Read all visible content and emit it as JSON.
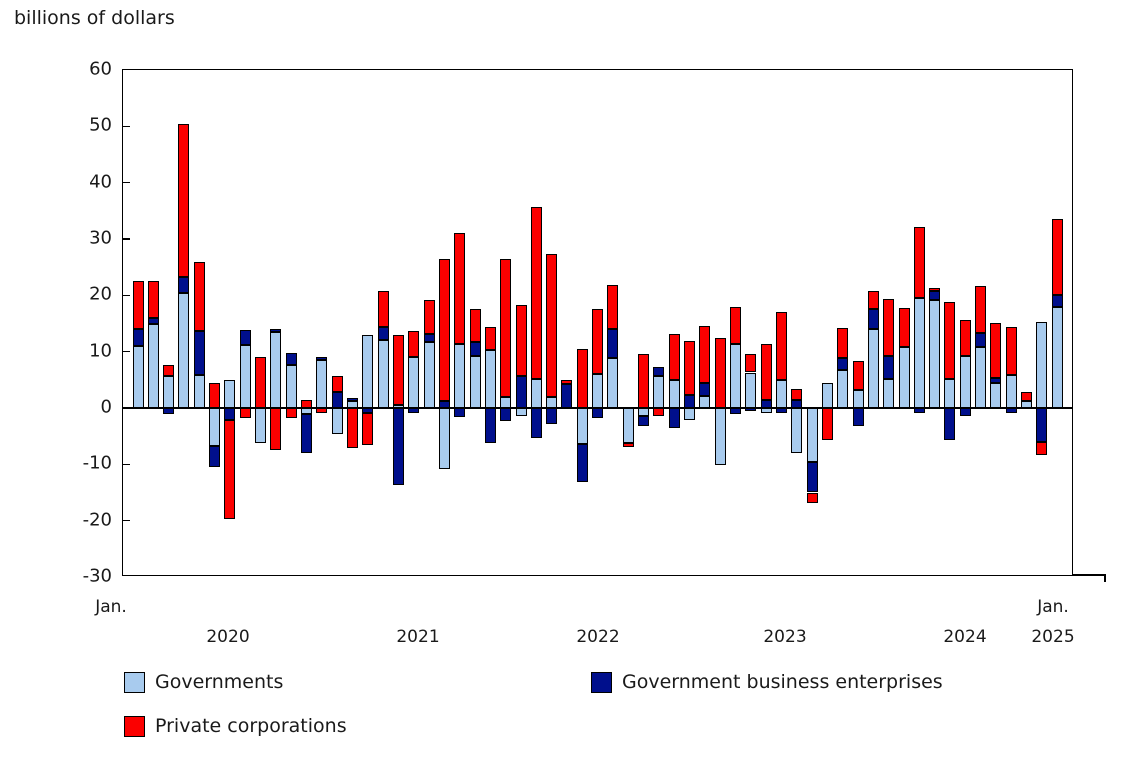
{
  "title": "billions of dollars",
  "chart_data": {
    "type": "bar",
    "stacked": true,
    "unit": "billions of dollars",
    "x_range": "Jan. 2020 to Jan. 2025, monthly",
    "grid": false,
    "legend_position": "bottom",
    "ylim": [
      -30,
      60
    ],
    "y_ticks": [
      60,
      50,
      40,
      30,
      20,
      10,
      0,
      -10,
      -20,
      -30
    ],
    "x_tick_labels": {
      "jan_label_left": "Jan.",
      "jan_label_right": "Jan.",
      "year_row": [
        "2020",
        "2021",
        "2022",
        "2023",
        "2024",
        "2025"
      ]
    },
    "categories": [
      "2020-01",
      "2020-02",
      "2020-03",
      "2020-04",
      "2020-05",
      "2020-06",
      "2020-07",
      "2020-08",
      "2020-09",
      "2020-10",
      "2020-11",
      "2020-12",
      "2021-01",
      "2021-02",
      "2021-03",
      "2021-04",
      "2021-05",
      "2021-06",
      "2021-07",
      "2021-08",
      "2021-09",
      "2021-10",
      "2021-11",
      "2021-12",
      "2022-01",
      "2022-02",
      "2022-03",
      "2022-04",
      "2022-05",
      "2022-06",
      "2022-07",
      "2022-08",
      "2022-09",
      "2022-10",
      "2022-11",
      "2022-12",
      "2023-01",
      "2023-02",
      "2023-03",
      "2023-04",
      "2023-05",
      "2023-06",
      "2023-07",
      "2023-08",
      "2023-09",
      "2023-10",
      "2023-11",
      "2023-12",
      "2024-01",
      "2024-02",
      "2024-03",
      "2024-04",
      "2024-05",
      "2024-06",
      "2024-07",
      "2024-08",
      "2024-09",
      "2024-10",
      "2024-11",
      "2024-12",
      "2025-01"
    ],
    "series": [
      {
        "name": "Governments",
        "color": "#a8cbee",
        "values": [
          11,
          14.9,
          5.6,
          20.5,
          5.9,
          -6.7,
          4.9,
          11.1,
          -6.2,
          13.5,
          7.6,
          -1.1,
          8.5,
          -4.6,
          1.3,
          12.9,
          12.1,
          0.5,
          9,
          11.7,
          -10.9,
          11.4,
          9.3,
          10.3,
          2,
          -1.5,
          5.2,
          1.9,
          0,
          -6.4,
          6.1,
          8.9,
          -6.3,
          -1.5,
          5.7,
          4.9,
          -2.2,
          2.2,
          -10.2,
          11.4,
          6.3,
          -0.9,
          4.9,
          -8,
          -9.5,
          4.5,
          6.7,
          3.2,
          14.1,
          5.2,
          10.8,
          19.6,
          19.2,
          5.2,
          9.2,
          10.8,
          4.4,
          5.8,
          1.3,
          15.2,
          17.9
        ]
      },
      {
        "name": "Government business enterprises",
        "color": "#000f8c",
        "values": [
          3,
          1.1,
          -1,
          2.8,
          7.7,
          -3.7,
          -2.2,
          2.7,
          0,
          0.5,
          2.1,
          -6.9,
          0.6,
          2.8,
          0.4,
          -0.9,
          2.2,
          -13.6,
          -0.8,
          1.5,
          1.3,
          -1.6,
          2.4,
          -6.3,
          -2.3,
          5.6,
          -5.4,
          -2.9,
          4.3,
          -6.7,
          -1.7,
          5.1,
          0,
          -1.7,
          1.6,
          -3.5,
          2.3,
          2.3,
          0,
          -1,
          -0.5,
          1.4,
          -0.9,
          1.4,
          -5.5,
          0,
          2.1,
          -3.2,
          3.5,
          4.1,
          0,
          -0.8,
          1.5,
          -5.6,
          -1.4,
          2.6,
          0.9,
          -0.8,
          0,
          -6.1,
          2.1
        ]
      },
      {
        "name": "Private corporations",
        "color": "#fb0000",
        "values": [
          8.6,
          6.5,
          2.1,
          27.2,
          12.4,
          4.4,
          -17.5,
          -1.8,
          9.1,
          -7.4,
          -1.8,
          1.4,
          -0.8,
          2.9,
          -7.1,
          -5.6,
          6.4,
          12.4,
          4.7,
          5.9,
          25.2,
          19.6,
          5.9,
          4,
          24.5,
          12.6,
          30.5,
          25.4,
          0.6,
          10.4,
          11.4,
          7.9,
          -0.6,
          9.6,
          -1.5,
          8.2,
          9.6,
          10,
          12.5,
          6.6,
          3.2,
          10,
          12.2,
          1.9,
          -1.8,
          -5.6,
          5.4,
          5.1,
          3.2,
          10,
          6.9,
          12.6,
          0.6,
          13.7,
          6.4,
          8.2,
          9.8,
          8.6,
          1.6,
          -2.2,
          13.5
        ]
      }
    ]
  }
}
